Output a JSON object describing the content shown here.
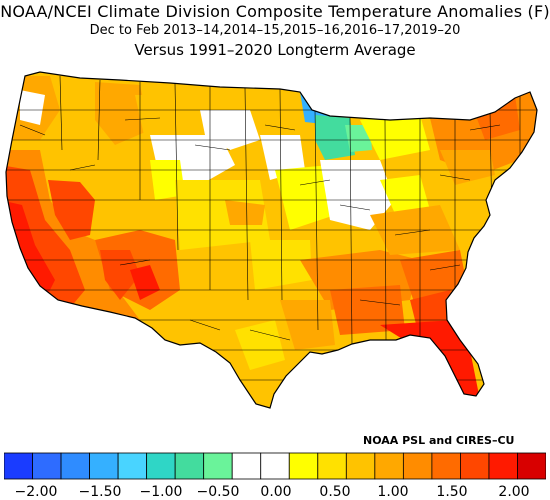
{
  "title": "NOAA/NCEI Climate Division Composite Temperature Anomalies (F)",
  "subtitle": "Dec to Feb  2013–14,2014–15,2015–16,2016–17,2019–20",
  "subtitle2": "Versus 1991–2020 Longterm Average",
  "credit": "NOAA PSL and CIRES–CU",
  "legend": {
    "ticks": [
      "−2.00",
      "−1.50",
      "−1.00",
      "−0.50",
      "0.00",
      "0.50",
      "1.00",
      "1.50",
      "2.00"
    ],
    "colors": [
      "#1a3cff",
      "#2e6cff",
      "#2f8cff",
      "#35b0ff",
      "#49d4ff",
      "#2fd6c6",
      "#43dc9e",
      "#6af39a",
      "#ffffff",
      "#ffffff",
      "#ffff00",
      "#ffe100",
      "#ffc300",
      "#ffa800",
      "#ff8c00",
      "#ff6b00",
      "#ff4700",
      "#ff1a00",
      "#d80000"
    ]
  },
  "map": {
    "background": "#ffffff",
    "border_color": "#000000"
  }
}
